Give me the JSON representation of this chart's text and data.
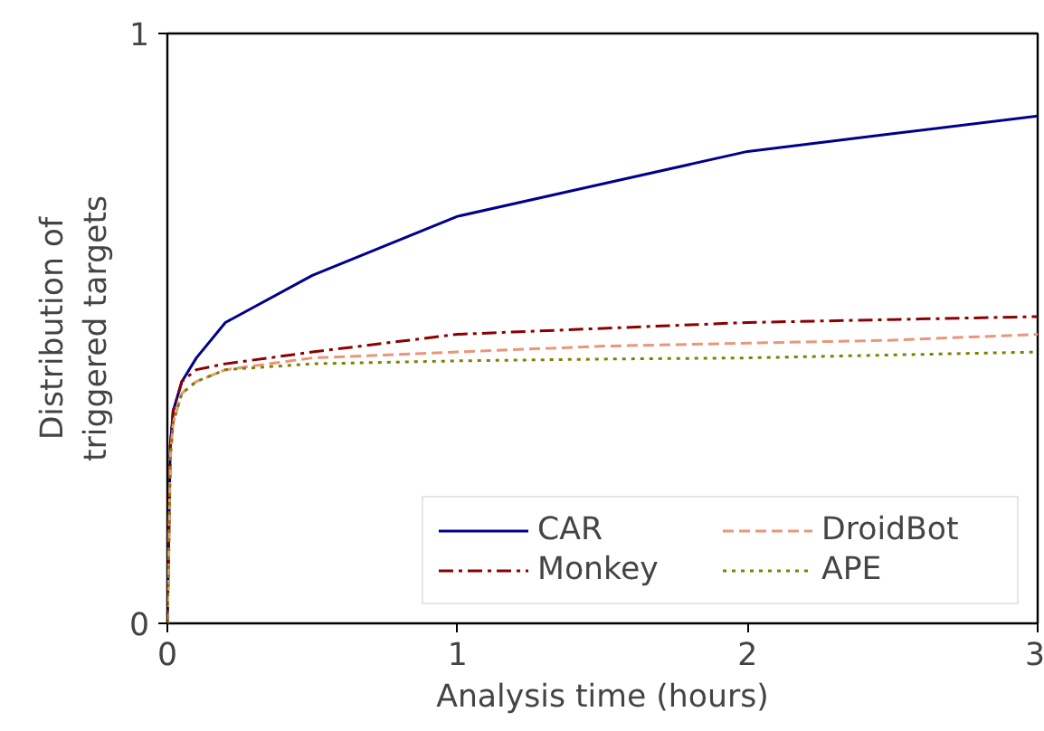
{
  "chart_data": {
    "type": "line",
    "xlabel": "Analysis time (hours)",
    "ylabel": "Distribution of\ntriggered targets",
    "x": [
      0,
      0.005,
      0.01,
      0.02,
      0.05,
      0.1,
      0.2,
      0.5,
      1,
      1.5,
      2,
      2.5,
      3
    ],
    "xlim": [
      0,
      3
    ],
    "xticks": [
      0,
      1,
      2,
      3
    ],
    "ylim": [
      0,
      1
    ],
    "yticks": [
      0,
      1
    ],
    "grid": false,
    "legend": "bottom right",
    "marker": "none",
    "series": [
      {
        "name": "CAR",
        "color": "#00008b",
        "line_style": "solid",
        "values": [
          0,
          0.15,
          0.3,
          0.36,
          0.41,
          0.45,
          0.51,
          0.59,
          0.69,
          0.745,
          0.8,
          0.83,
          0.86
        ]
      },
      {
        "name": "Monkey",
        "color": "#8b0000",
        "line_style": "dashdot",
        "values": [
          0,
          0.15,
          0.3,
          0.36,
          0.41,
          0.43,
          0.44,
          0.46,
          0.49,
          0.5,
          0.51,
          0.515,
          0.52
        ]
      },
      {
        "name": "DroidBot",
        "color": "#e9967a",
        "line_style": "dashed",
        "values": [
          0,
          0.12,
          0.28,
          0.34,
          0.39,
          0.41,
          0.43,
          0.45,
          0.46,
          0.47,
          0.475,
          0.48,
          0.49
        ]
      },
      {
        "name": "APE",
        "color": "#808000",
        "line_style": "dotted",
        "values": [
          0,
          0.12,
          0.28,
          0.34,
          0.39,
          0.41,
          0.43,
          0.44,
          0.445,
          0.448,
          0.45,
          0.455,
          0.46
        ]
      }
    ]
  }
}
